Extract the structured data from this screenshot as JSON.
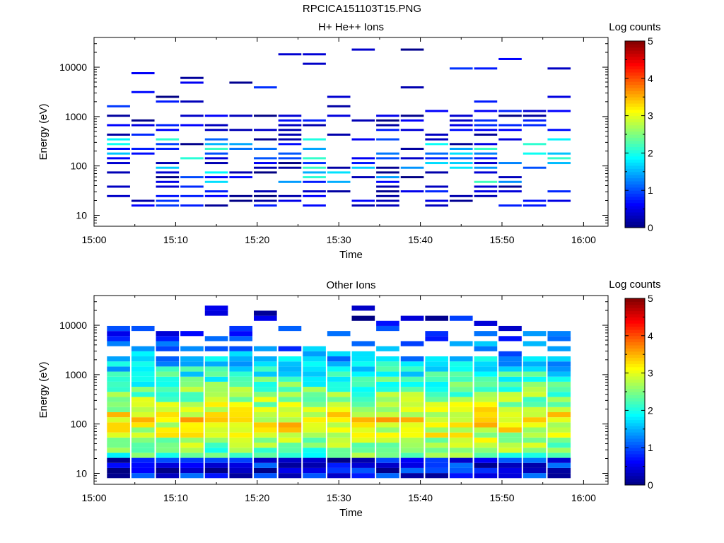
{
  "figure_title": "RPCICA151103T15.PNG",
  "colorbar": {
    "label": "Log counts",
    "min": 0,
    "max": 5,
    "ticks": [
      "0",
      "1",
      "2",
      "3",
      "4",
      "5"
    ],
    "colormap": "jet"
  },
  "chart_data": [
    {
      "type": "heatmap",
      "title": "H+ He++ Ions",
      "xlabel": "Time",
      "ylabel": "Energy (eV)",
      "y_scale": "log",
      "ylim": [
        6,
        40000
      ],
      "xlim": [
        "15:00",
        "16:03"
      ],
      "x_ticks": [
        "15:00",
        "15:10",
        "15:20",
        "15:30",
        "15:40",
        "15:50",
        "16:00"
      ],
      "y_ticks": [
        "10",
        "100",
        "1000",
        "10000"
      ],
      "time_bins": [
        "15:03",
        "15:06",
        "15:09",
        "15:12",
        "15:15",
        "15:18",
        "15:21",
        "15:24",
        "15:27",
        "15:30",
        "15:33",
        "15:36",
        "15:39",
        "15:42",
        "15:45",
        "15:48",
        "15:51",
        "15:54",
        "15:57"
      ],
      "energy_range_eV": [
        15,
        27000
      ],
      "log_counts_range": [
        0,
        2.2
      ],
      "description": "sparse low counts, mostly 0-1 log counts, strongest near 100 eV"
    },
    {
      "type": "heatmap",
      "title": "Other Ions",
      "xlabel": "Time",
      "ylabel": "Energy (eV)",
      "y_scale": "log",
      "ylim": [
        6,
        40000
      ],
      "xlim": [
        "15:00",
        "16:03"
      ],
      "x_ticks": [
        "15:00",
        "15:10",
        "15:20",
        "15:30",
        "15:40",
        "15:50",
        "16:00"
      ],
      "y_ticks": [
        "10",
        "100",
        "1000",
        "10000"
      ],
      "time_bins": [
        "15:03",
        "15:06",
        "15:09",
        "15:12",
        "15:15",
        "15:18",
        "15:21",
        "15:24",
        "15:27",
        "15:30",
        "15:33",
        "15:36",
        "15:39",
        "15:42",
        "15:45",
        "15:48",
        "15:51",
        "15:54",
        "15:57"
      ],
      "energy_range_eV": [
        8,
        25000
      ],
      "log_counts_range": [
        0,
        3.8
      ],
      "description": "dense counts below ~1000 eV, peak ~3.5-3.8 log counts between 30 and 300 eV"
    }
  ]
}
